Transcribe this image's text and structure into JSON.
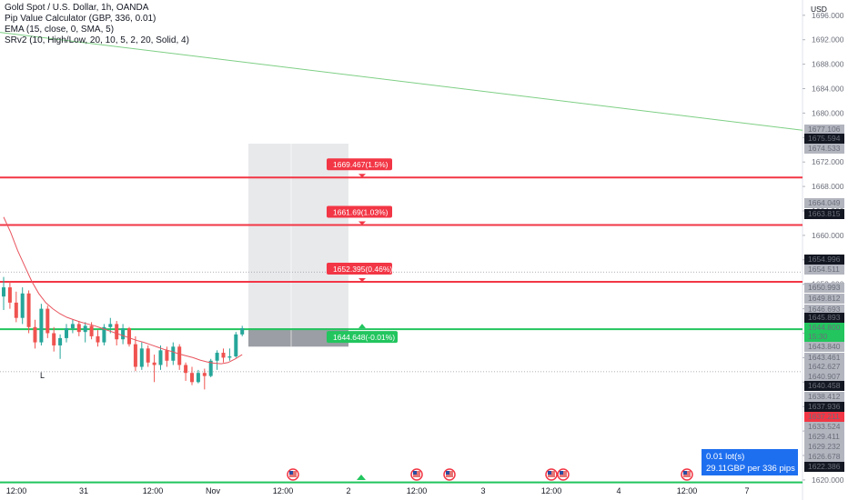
{
  "legend": {
    "title": "Gold Spot / U.S. Dollar, 1h, OANDA",
    "line1": "Pip Value Calculator (GBP, 336, 0.01)",
    "line2": "EMA (15, close, 0, SMA, 5)",
    "line3": "SRv2 (10, High/Low, 20, 10, 5, 2, 20, Solid, 4)"
  },
  "currency": "USD",
  "info_box": {
    "lots": "0.01 lot(s)",
    "value": "29.11GBP per 336 pips"
  },
  "colors": {
    "up": "#26a69a",
    "down": "#ef5350",
    "resistance": "#f23645",
    "support": "#22c55e",
    "ema": "#e8545d",
    "trend": "#7ecf85",
    "info": "#1e6ff0",
    "dark_label": "#131722",
    "gray_label": "#787b86"
  },
  "chart_data": {
    "type": "candlestick",
    "ylim": [
      1618.5,
      1698.5
    ],
    "y_ticks": [
      1620,
      1624,
      1628,
      1632,
      1636,
      1640,
      1644,
      1648,
      1652,
      1656,
      1660,
      1664,
      1668,
      1672,
      1676,
      1680,
      1684,
      1688,
      1692,
      1696
    ],
    "x_labels": [
      "12:00",
      "31",
      "12:00",
      "Nov",
      "12:00",
      "2",
      "12:00",
      "3",
      "12:00",
      "4",
      "12:00",
      "7"
    ],
    "candles": [
      {
        "o": 1650.0,
        "h": 1653.2,
        "l": 1647.8,
        "c": 1651.5
      },
      {
        "o": 1651.5,
        "h": 1652.5,
        "l": 1648.0,
        "c": 1649.0
      },
      {
        "o": 1649.0,
        "h": 1650.8,
        "l": 1645.8,
        "c": 1646.5
      },
      {
        "o": 1646.5,
        "h": 1651.5,
        "l": 1645.5,
        "c": 1650.5
      },
      {
        "o": 1650.5,
        "h": 1651.0,
        "l": 1644.0,
        "c": 1645.0
      },
      {
        "o": 1645.0,
        "h": 1646.2,
        "l": 1641.5,
        "c": 1642.5
      },
      {
        "o": 1642.5,
        "h": 1648.8,
        "l": 1642.0,
        "c": 1648.0
      },
      {
        "o": 1648.0,
        "h": 1648.5,
        "l": 1643.2,
        "c": 1644.0
      },
      {
        "o": 1644.0,
        "h": 1645.0,
        "l": 1641.0,
        "c": 1642.0
      },
      {
        "o": 1642.0,
        "h": 1643.8,
        "l": 1639.8,
        "c": 1643.2
      },
      {
        "o": 1643.2,
        "h": 1645.5,
        "l": 1642.5,
        "c": 1644.8
      },
      {
        "o": 1644.8,
        "h": 1646.2,
        "l": 1644.0,
        "c": 1645.5
      },
      {
        "o": 1645.5,
        "h": 1646.0,
        "l": 1643.5,
        "c": 1644.2
      },
      {
        "o": 1644.2,
        "h": 1645.8,
        "l": 1642.5,
        "c": 1645.2
      },
      {
        "o": 1645.2,
        "h": 1645.8,
        "l": 1643.0,
        "c": 1643.5
      },
      {
        "o": 1643.5,
        "h": 1644.5,
        "l": 1641.8,
        "c": 1642.5
      },
      {
        "o": 1642.5,
        "h": 1645.5,
        "l": 1642.0,
        "c": 1645.0
      },
      {
        "o": 1645.0,
        "h": 1646.5,
        "l": 1644.0,
        "c": 1645.5
      },
      {
        "o": 1645.5,
        "h": 1646.0,
        "l": 1642.0,
        "c": 1643.0
      },
      {
        "o": 1643.0,
        "h": 1645.5,
        "l": 1642.2,
        "c": 1644.8
      },
      {
        "o": 1644.8,
        "h": 1645.0,
        "l": 1641.8,
        "c": 1642.2
      },
      {
        "o": 1642.2,
        "h": 1643.5,
        "l": 1637.8,
        "c": 1638.5
      },
      {
        "o": 1638.5,
        "h": 1642.5,
        "l": 1638.0,
        "c": 1641.5
      },
      {
        "o": 1641.5,
        "h": 1642.0,
        "l": 1638.5,
        "c": 1639.2
      },
      {
        "o": 1639.2,
        "h": 1640.5,
        "l": 1636.0,
        "c": 1638.8
      },
      {
        "o": 1638.8,
        "h": 1642.0,
        "l": 1638.0,
        "c": 1641.2
      },
      {
        "o": 1641.2,
        "h": 1641.8,
        "l": 1638.5,
        "c": 1639.5
      },
      {
        "o": 1639.5,
        "h": 1642.5,
        "l": 1638.8,
        "c": 1641.8
      },
      {
        "o": 1641.8,
        "h": 1642.2,
        "l": 1638.0,
        "c": 1638.8
      },
      {
        "o": 1638.8,
        "h": 1639.2,
        "l": 1636.2,
        "c": 1637.5
      },
      {
        "o": 1637.5,
        "h": 1638.5,
        "l": 1635.5,
        "c": 1636.0
      },
      {
        "o": 1636.0,
        "h": 1638.0,
        "l": 1635.8,
        "c": 1637.5
      },
      {
        "o": 1637.5,
        "h": 1638.2,
        "l": 1634.8,
        "c": 1637.0
      },
      {
        "o": 1637.0,
        "h": 1639.8,
        "l": 1636.8,
        "c": 1639.5
      },
      {
        "o": 1639.5,
        "h": 1641.2,
        "l": 1638.0,
        "c": 1640.8
      },
      {
        "o": 1640.8,
        "h": 1641.5,
        "l": 1639.2,
        "c": 1640.0
      },
      {
        "o": 1640.0,
        "h": 1641.5,
        "l": 1639.5,
        "c": 1640.2
      },
      {
        "o": 1640.2,
        "h": 1644.2,
        "l": 1640.0,
        "c": 1643.8
      },
      {
        "o": 1643.8,
        "h": 1645.2,
        "l": 1643.5,
        "c": 1644.8
      }
    ],
    "ema": [
      1663.0,
      1660.5,
      1657.5,
      1655.0,
      1652.5,
      1650.5,
      1649.0,
      1648.0,
      1647.2,
      1646.6,
      1646.2,
      1645.8,
      1645.5,
      1645.2,
      1644.8,
      1644.4,
      1644.0,
      1643.6,
      1643.2,
      1642.8,
      1642.5,
      1642.1,
      1641.7,
      1641.3,
      1641.0,
      1640.6,
      1640.3,
      1640.0,
      1639.6,
      1639.3,
      1639.1,
      1639.0,
      1639.2,
      1639.8,
      1640.5
    ],
    "trend_line": {
      "from": 1693.2,
      "to": 1677.2
    },
    "levels": [
      {
        "value": 1669.467,
        "label": "1669.467(1.5%)",
        "kind": "resistance"
      },
      {
        "value": 1661.69,
        "label": "1661.69(1.03%)",
        "kind": "resistance"
      },
      {
        "value": 1652.395,
        "label": "1652.395(0.46%)",
        "kind": "resistance"
      },
      {
        "value": 1644.648,
        "label": "1644.648(-0.01%)",
        "kind": "support"
      },
      {
        "value": 1619.6,
        "label": "",
        "kind": "support"
      }
    ],
    "position_box": {
      "top": 1675.0,
      "entry": 1644.8,
      "stop": 1641.8
    },
    "dotted_levels": [
      1654.0,
      1637.7
    ],
    "price_labels": [
      {
        "text": "1677.106",
        "style": "gray"
      },
      {
        "text": "1675.594",
        "style": "dark"
      },
      {
        "text": "1674.533",
        "style": "gray"
      },
      {
        "text": "1664.049",
        "style": "gray"
      },
      {
        "text": "1663.815",
        "style": "dark"
      },
      {
        "text": "1654.996",
        "style": "dark"
      },
      {
        "text": "1654.511",
        "style": "gray"
      },
      {
        "text": "1650.993",
        "style": "gray"
      },
      {
        "text": "1649.812",
        "style": "gray"
      },
      {
        "text": "1646.693",
        "style": "gray"
      },
      {
        "text": "1645.893",
        "style": "dark"
      },
      {
        "text": "1644.800",
        "style": "green"
      },
      {
        "text": "15:30",
        "style": "green"
      },
      {
        "text": "1643.840",
        "style": "gray"
      },
      {
        "text": "1643.461",
        "style": "gray"
      },
      {
        "text": "1642.627",
        "style": "gray"
      },
      {
        "text": "1640.907",
        "style": "gray"
      },
      {
        "text": "1640.458",
        "style": "dark"
      },
      {
        "text": "1638.412",
        "style": "gray"
      },
      {
        "text": "1637.936",
        "style": "dark"
      },
      {
        "text": "1637.211",
        "style": "red"
      },
      {
        "text": "1633.524",
        "style": "gray"
      },
      {
        "text": "1629.411",
        "style": "gray"
      },
      {
        "text": "1629.232",
        "style": "gray"
      },
      {
        "text": "1626.678",
        "style": "gray"
      },
      {
        "text": "1622.386",
        "style": "dark"
      }
    ],
    "annotation": "L"
  }
}
